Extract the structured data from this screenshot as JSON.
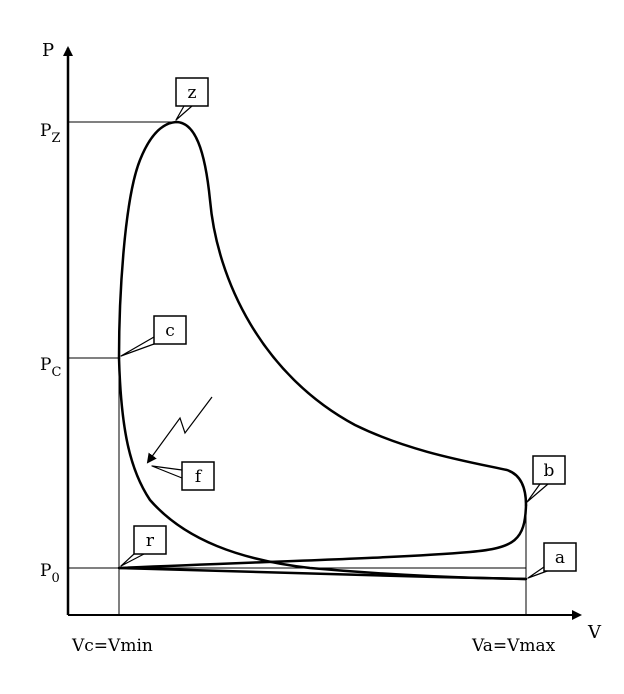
{
  "axes": {
    "y_label": "P",
    "x_label": "V"
  },
  "pressure_ticks": {
    "pz": {
      "main": "P",
      "sub": "Z"
    },
    "pc": {
      "main": "P",
      "sub": "C"
    },
    "p0": {
      "main": "P",
      "sub": "0"
    }
  },
  "volume_ticks": {
    "vc": "Vc=Vmin",
    "va": "Va=Vmax"
  },
  "points": {
    "z": "z",
    "c": "c",
    "f": "f",
    "b": "b",
    "r": "r",
    "a": "a"
  }
}
